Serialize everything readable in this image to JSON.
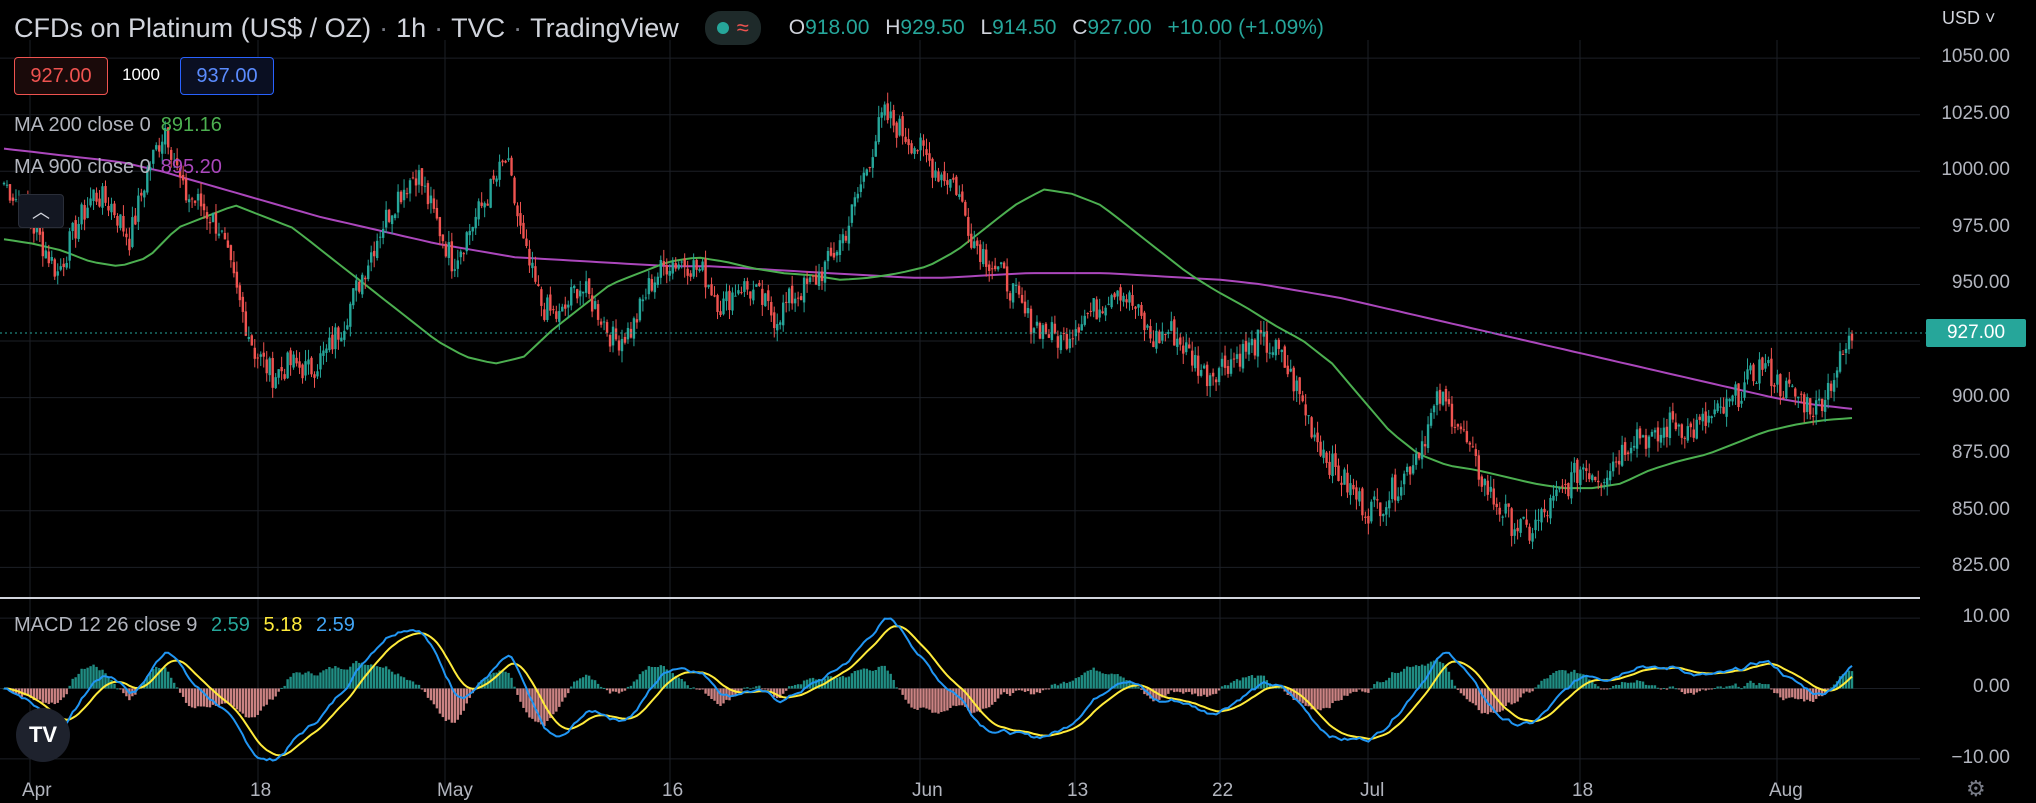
{
  "header": {
    "symbol": "CFDs on Platinum (US$ / OZ)",
    "interval": "1h",
    "exchange": "TVC",
    "source": "TradingView",
    "ohlc": {
      "o": "918.00",
      "h": "929.50",
      "l": "914.50",
      "c": "927.00",
      "change": "+10.00 (+1.09%)"
    }
  },
  "price_boxes": {
    "bid": "927.00",
    "spread": "1000",
    "ask": "937.00"
  },
  "indicators": [
    {
      "label": "MA 200 close 0",
      "value": "891.16",
      "color": "#4caf50"
    },
    {
      "label": "MA 900 close 0",
      "value": "895.20",
      "color": "#ab47bc"
    }
  ],
  "currency_menu": "USD",
  "current_price_tag": "927.00",
  "macd": {
    "label": "MACD 12 26 close 9",
    "v1": "2.59",
    "v2": "5.18",
    "v3": "2.59"
  },
  "colors": {
    "up": "#26a69a",
    "down": "#ef5350",
    "ma200": "#4caf50",
    "ma900": "#ab47bc",
    "macd": "#2196f3",
    "signal": "#ffeb3b",
    "grid": "#1c1f26"
  },
  "chart_data": {
    "type": "candlestick",
    "price_axis": {
      "ticks": [
        "1050.00",
        "1025.00",
        "1000.00",
        "975.00",
        "950.00",
        "925.00",
        "900.00",
        "875.00",
        "850.00",
        "825.00"
      ],
      "ylim": [
        815,
        1058
      ]
    },
    "macd_axis": {
      "ticks": [
        "10.00",
        "0.00",
        "−10.00"
      ],
      "ylim": [
        -13,
        12
      ]
    },
    "x_ticks": [
      "Apr",
      "18",
      "May",
      "16",
      "Jun",
      "13",
      "22",
      "Jul",
      "18",
      "Aug"
    ],
    "close_path": [
      995,
      985,
      970,
      955,
      975,
      990,
      985,
      970,
      1000,
      1020,
      990,
      985,
      975,
      945,
      920,
      910,
      915,
      912,
      920,
      935,
      955,
      975,
      990,
      1000,
      980,
      960,
      975,
      990,
      1005,
      965,
      940,
      935,
      950,
      940,
      925,
      930,
      950,
      960,
      960,
      955,
      940,
      950,
      945,
      935,
      945,
      950,
      960,
      975,
      1000,
      1025,
      1018,
      1010,
      1000,
      995,
      970,
      960,
      950,
      935,
      930,
      925,
      935,
      940,
      950,
      940,
      925,
      930,
      920,
      910,
      915,
      920,
      925,
      920,
      905,
      885,
      870,
      860,
      850,
      855,
      865,
      880,
      900,
      890,
      870,
      855,
      845,
      840,
      850,
      860,
      870,
      865,
      875,
      885,
      880,
      890,
      885,
      890,
      895,
      905,
      915,
      905,
      900,
      895,
      910,
      927
    ],
    "ma200_path": [
      970,
      968,
      965,
      960,
      958,
      962,
      975,
      980,
      985,
      980,
      975,
      965,
      955,
      945,
      935,
      925,
      918,
      915,
      918,
      930,
      940,
      950,
      955,
      960,
      962,
      960,
      957,
      955,
      954,
      952,
      953,
      955,
      958,
      965,
      975,
      985,
      992,
      990,
      985,
      975,
      965,
      955,
      947,
      940,
      932,
      925,
      915,
      900,
      885,
      875,
      870,
      868,
      865,
      862,
      860,
      860,
      862,
      868,
      872,
      875,
      880,
      885,
      888,
      890,
      891
    ],
    "ma900_path": [
      1010,
      1008,
      1006,
      1004,
      1000,
      995,
      990,
      985,
      980,
      976,
      972,
      968,
      965,
      962,
      961,
      960,
      959,
      958,
      958,
      957,
      956,
      955,
      954,
      953,
      953,
      954,
      955,
      955,
      955,
      954,
      953,
      952,
      950,
      947,
      944,
      940,
      936,
      932,
      928,
      924,
      920,
      916,
      912,
      908,
      904,
      900,
      897,
      895
    ]
  }
}
